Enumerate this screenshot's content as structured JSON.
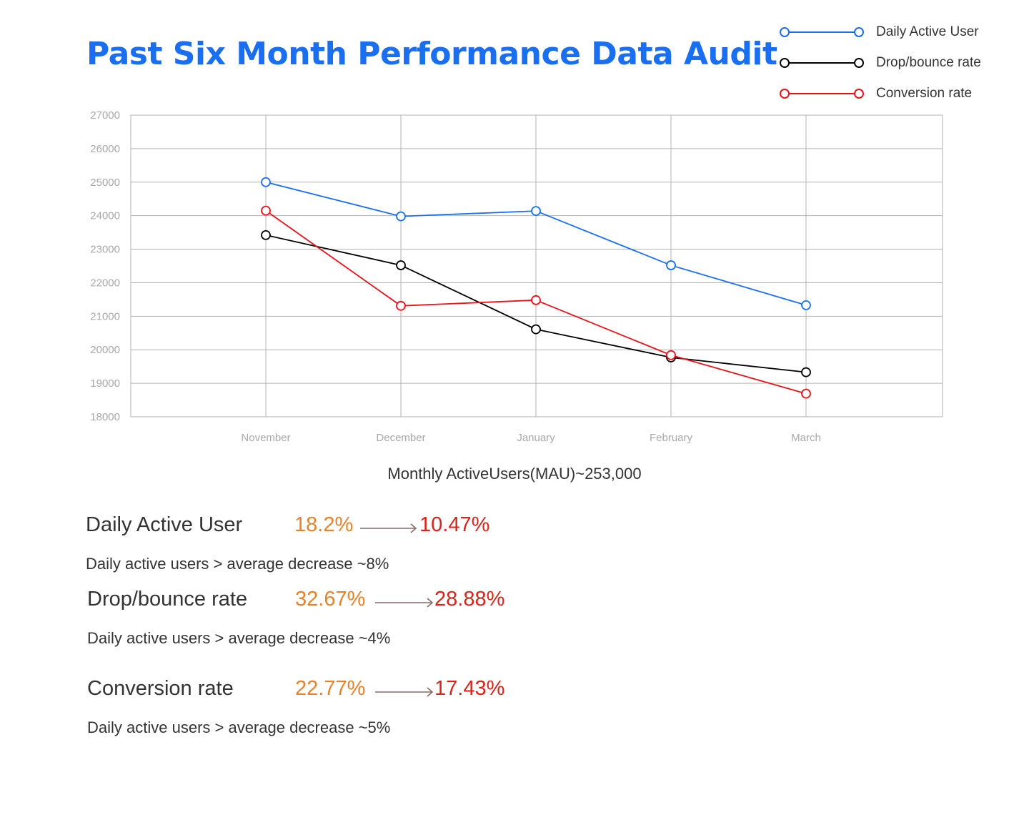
{
  "chart_data": {
    "type": "line",
    "title": "Past Six Month Performance Data Audit",
    "categories": [
      "November",
      "December",
      "January",
      "February",
      "March"
    ],
    "ylim": [
      18000,
      27000
    ],
    "yticks": [
      27000,
      26000,
      25000,
      24000,
      23000,
      22000,
      21000,
      20000,
      19000,
      18000
    ],
    "grid": true,
    "legend_position": "top-right",
    "series": [
      {
        "name": "Daily Active User",
        "color": "#1a6ef0",
        "values": [
          25000,
          23980,
          24140,
          22520,
          21330
        ]
      },
      {
        "name": "Drop/bounce rate",
        "color": "#000000",
        "values": [
          23420,
          22520,
          20610,
          19770,
          19330
        ]
      },
      {
        "name": "Conversion rate",
        "color": "#e8121b",
        "values": [
          24150,
          21310,
          21480,
          19840,
          18690
        ]
      }
    ]
  },
  "mau_caption": "Monthly ActiveUsers(MAU)~253,000",
  "metrics": [
    {
      "name": "Daily Active User",
      "from": "18.2%",
      "to": "10.47%",
      "note": "Daily active users > average decrease ~8%"
    },
    {
      "name": "Drop/bounce rate",
      "from": "32.67%",
      "to": "28.88%",
      "note": "Daily active users > average decrease ~4%"
    },
    {
      "name": "Conversion rate",
      "from": "22.77%",
      "to": "17.43%",
      "note": "Daily active users > average decrease ~5%"
    }
  ]
}
